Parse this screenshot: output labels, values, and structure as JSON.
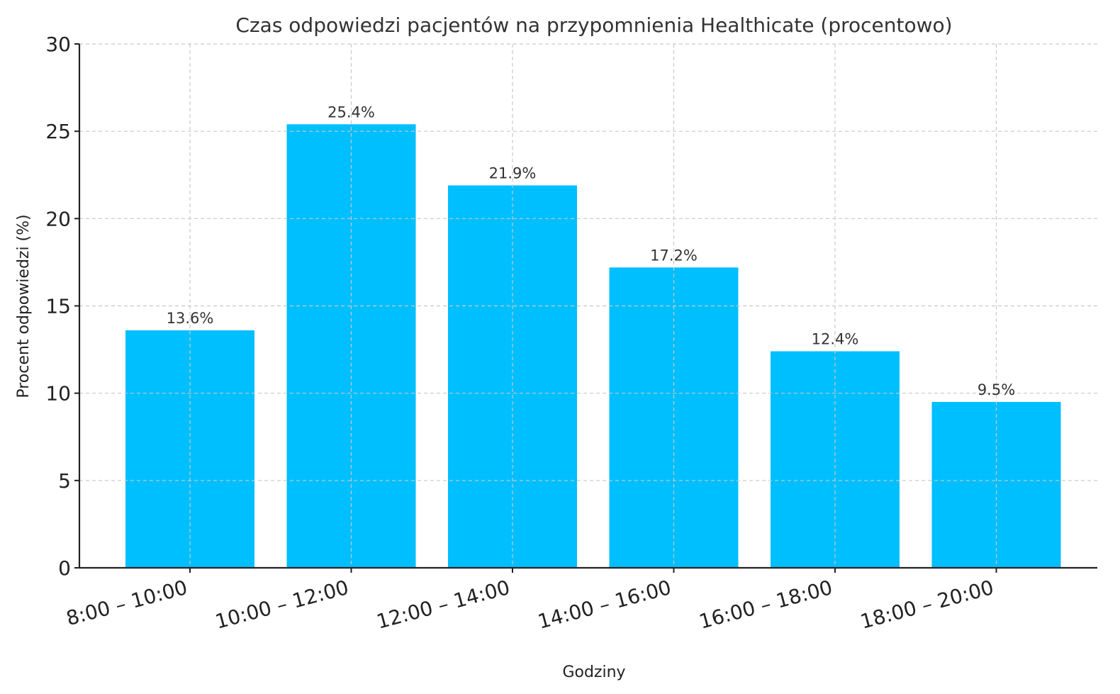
{
  "chart_data": {
    "type": "bar",
    "title": "Czas odpowiedzi pacjentów na przypomnienia Healthicate (procentowo)",
    "xlabel": "Godziny",
    "ylabel": "Procent odpowiedzi (%)",
    "categories": [
      "8:00 – 10:00",
      "10:00 – 12:00",
      "12:00 – 14:00",
      "14:00 – 16:00",
      "16:00 – 18:00",
      "18:00 – 20:00"
    ],
    "values": [
      13.6,
      25.4,
      21.9,
      17.2,
      12.4,
      9.5
    ],
    "value_labels": [
      "13.6%",
      "25.4%",
      "21.9%",
      "17.2%",
      "12.4%",
      "9.5%"
    ],
    "ylim": [
      0,
      30
    ],
    "yticks": [
      0,
      5,
      10,
      15,
      20,
      25,
      30
    ],
    "grid": true,
    "bar_color": "#00bfff",
    "xtick_rotation": "15 degrees counter-clockwise"
  }
}
